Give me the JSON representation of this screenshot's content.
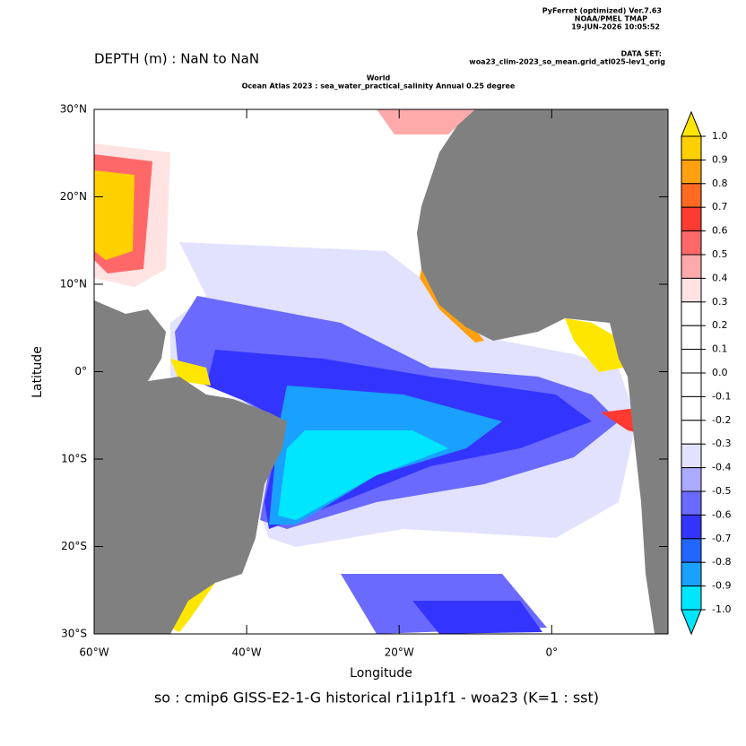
{
  "chart_data": {
    "type": "map",
    "header": [
      "PyFerret (optimized) Ver.7.63",
      "NOAA/PMEL TMAP",
      "19-JUN-2026 10:05:52"
    ],
    "dataset_label": "DATA SET:",
    "dataset": "woa23_clim-2023_so_mean.grid_atl025-lev1_orig",
    "title": "DEPTH (m) : NaN to NaN",
    "subtitle": [
      "World",
      "Ocean Atlas 2023 : sea_water_practical_salinity Annual  0.25 degree"
    ],
    "xlabel": "Longitude",
    "ylabel": "Latitude",
    "caption": "so : cmip6 GISS-E2-1-G historical r1i1p1f1 - woa23  (K=1 : sst)",
    "xlim": [
      -60,
      15.25
    ],
    "ylim": [
      -30,
      30
    ],
    "xticks": [
      {
        "value": -60,
        "label": "60°W"
      },
      {
        "value": -40,
        "label": "40°W"
      },
      {
        "value": -20,
        "label": "20°W"
      },
      {
        "value": 0,
        "label": "0°"
      }
    ],
    "yticks": [
      {
        "value": 30,
        "label": "30°N"
      },
      {
        "value": 20,
        "label": "20°N"
      },
      {
        "value": 10,
        "label": "10°N"
      },
      {
        "value": 0,
        "label": "0°"
      },
      {
        "value": -10,
        "label": "10°S"
      },
      {
        "value": -20,
        "label": "20°S"
      },
      {
        "value": -30,
        "label": "30°S"
      }
    ],
    "colorbar": {
      "labels": [
        "1.0",
        "0.9",
        "0.8",
        "0.7",
        "0.6",
        "0.5",
        "0.4",
        "0.3",
        "0.2",
        "0.1",
        "0.0",
        "-0.1",
        "-0.2",
        "-0.3",
        "-0.4",
        "-0.5",
        "-0.6",
        "-0.7",
        "-0.8",
        "-0.9",
        "-1.0"
      ],
      "colors": [
        "#ffe600",
        "#ffd000",
        "#ffa010",
        "#ff6a20",
        "#ff3a30",
        "#ff6868",
        "#ffaaaa",
        "#ffe2e2",
        "#ffffff",
        "#ffffff",
        "#ffffff",
        "#ffffff",
        "#ffffff",
        "#ffffff",
        "#e2e2ff",
        "#aaaaff",
        "#6a6aff",
        "#3434ff",
        "#2266ff",
        "#1aa0ff",
        "#00e6ff",
        "#00e6ff"
      ]
    }
  }
}
